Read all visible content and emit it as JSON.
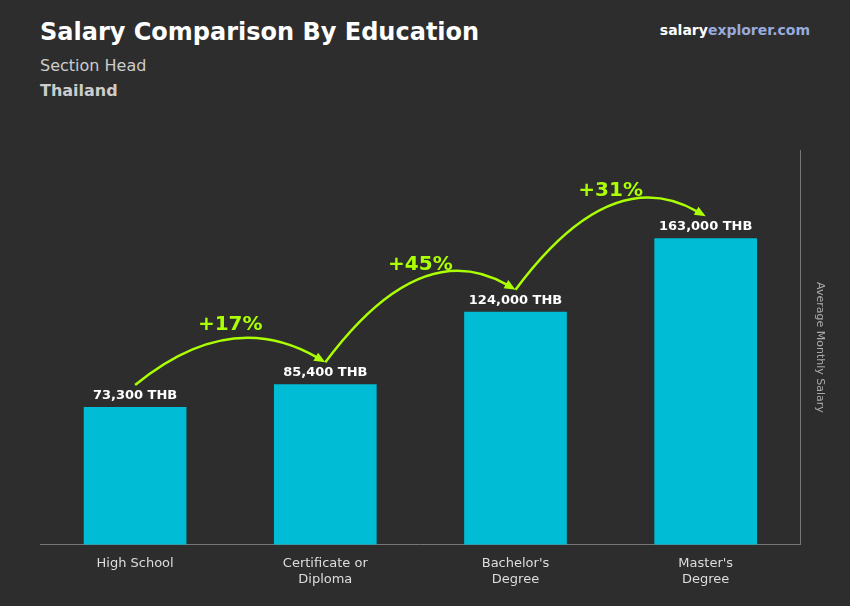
{
  "chart_data": {
    "type": "bar",
    "title": "Salary Comparison By Education",
    "subtitle": "Section Head",
    "location": "Thailand",
    "watermark": [
      "salary",
      "explorer.com"
    ],
    "ylabel": "Average Monthly Salary",
    "categories": [
      "High School",
      "Certificate or\nDiploma",
      "Bachelor's\nDegree",
      "Master's\nDegree"
    ],
    "values": [
      73300,
      85400,
      124000,
      163000
    ],
    "value_labels": [
      "73,300 THB",
      "85,400 THB",
      "124,000 THB",
      "163,000 THB"
    ],
    "data_labels": true,
    "annotations": [
      {
        "text": "+17%",
        "color": "#aaff00"
      },
      {
        "text": "+45%",
        "color": "#aaff00"
      },
      {
        "text": "+31%",
        "color": "#aaff00"
      }
    ],
    "color": "#00bcd4",
    "ylim": [
      0,
      210000
    ],
    "grid": false,
    "tick_labels": "x"
  }
}
